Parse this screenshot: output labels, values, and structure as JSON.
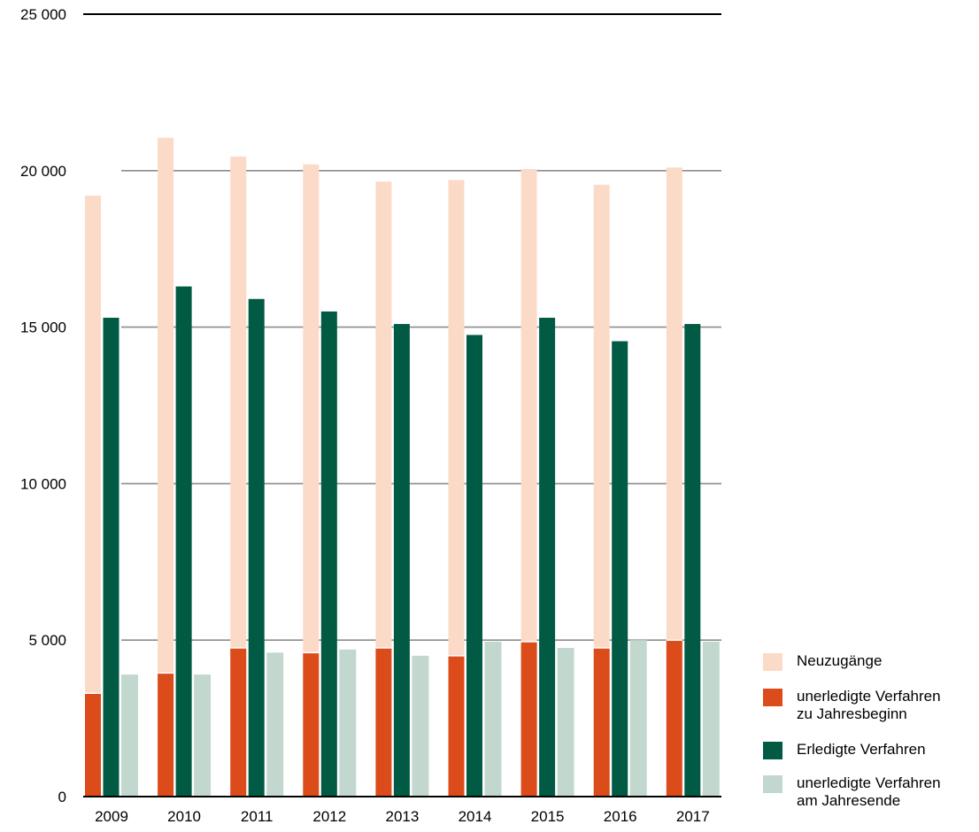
{
  "chart_data": {
    "type": "bar",
    "categories": [
      "2009",
      "2010",
      "2011",
      "2012",
      "2013",
      "2014",
      "2015",
      "2016",
      "2017"
    ],
    "ylim": [
      0,
      25000
    ],
    "yticks": [
      0,
      5000,
      10000,
      15000,
      20000,
      25000
    ],
    "ytick_labels": [
      "0",
      "5 000",
      "10 000",
      "15 000",
      "20 000",
      "25 000"
    ],
    "grid": true,
    "legend_position": "bottom-right",
    "series": [
      {
        "name": "Neuzugänge",
        "color": "#fbdac8",
        "stacked_on": "unerledigte Verfahren zu Jahresbeginn",
        "values": [
          15900,
          17100,
          15700,
          15600,
          14900,
          15200,
          15100,
          14800,
          15100
        ]
      },
      {
        "name": "unerledigte Verfahren zu Jahresbeginn",
        "color": "#dc4b1a",
        "values": [
          3300,
          3950,
          4750,
          4600,
          4750,
          4500,
          4950,
          4750,
          5000
        ]
      },
      {
        "name": "Erledigte Verfahren",
        "color": "#005a44",
        "values": [
          15300,
          16300,
          15900,
          15500,
          15100,
          14750,
          15300,
          14550,
          15100
        ]
      },
      {
        "name": "unerledigte Verfahren am Jahresende",
        "color": "#c2d8ce",
        "values": [
          3900,
          3900,
          4600,
          4700,
          4500,
          4950,
          4750,
          5000,
          4950
        ]
      }
    ]
  },
  "legend": {
    "items": [
      {
        "label": "Neuzugänge",
        "color": "#fbdac8"
      },
      {
        "label": "unerledigte Verfahren\nzu Jahresbeginn",
        "color": "#dc4b1a"
      },
      {
        "label": "Erledigte Verfahren",
        "color": "#005a44"
      },
      {
        "label": "unerledigte Verfahren\nam Jahresende",
        "color": "#c2d8ce"
      }
    ]
  }
}
